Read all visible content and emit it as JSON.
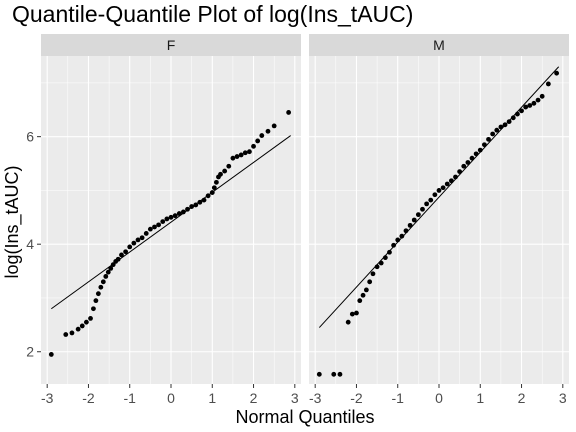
{
  "chart_data": {
    "type": "scatter",
    "title": "Quantile-Quantile Plot of log(Ins_tAUC)",
    "xlabel": "Normal Quantiles",
    "ylabel": "log(Ins_tAUC)",
    "xlim": [
      -3.15,
      3.15
    ],
    "ylim": [
      1.4,
      7.5
    ],
    "x_ticks": [
      -3,
      -2,
      -1,
      0,
      1,
      2,
      3
    ],
    "x_tick_labels": [
      "-3",
      "-2",
      "-1",
      "0",
      "1",
      "2",
      "3"
    ],
    "y_ticks": [
      2,
      4,
      6
    ],
    "y_tick_labels": [
      "2",
      "4",
      "6"
    ],
    "grid": true,
    "colors": {
      "panel_background": "#ebebeb",
      "strip_background": "#d9d9d9",
      "grid_major": "#ffffff",
      "points": "#000000",
      "reference_line": "#000000"
    },
    "panels": [
      {
        "facet_label": "F",
        "reference_line": {
          "x": [
            -2.9,
            2.9
          ],
          "y": [
            2.8,
            6.02
          ]
        },
        "points": {
          "x": [
            -2.9,
            -2.55,
            -2.4,
            -2.25,
            -2.15,
            -2.05,
            -1.95,
            -1.88,
            -1.82,
            -1.76,
            -1.7,
            -1.64,
            -1.58,
            -1.52,
            -1.46,
            -1.4,
            -1.34,
            -1.28,
            -1.2,
            -1.1,
            -1.0,
            -0.9,
            -0.8,
            -0.7,
            -0.6,
            -0.5,
            -0.4,
            -0.3,
            -0.2,
            -0.1,
            0.0,
            0.1,
            0.2,
            0.3,
            0.4,
            0.5,
            0.6,
            0.7,
            0.8,
            0.9,
            1.0,
            1.05,
            1.1,
            1.15,
            1.2,
            1.3,
            1.4,
            1.5,
            1.6,
            1.7,
            1.8,
            1.9,
            2.0,
            2.1,
            2.2,
            2.35,
            2.5,
            2.85
          ],
          "y": [
            1.95,
            2.32,
            2.35,
            2.42,
            2.48,
            2.55,
            2.62,
            2.8,
            2.95,
            3.08,
            3.2,
            3.3,
            3.4,
            3.48,
            3.55,
            3.62,
            3.68,
            3.72,
            3.8,
            3.86,
            3.95,
            4.02,
            4.08,
            4.12,
            4.2,
            4.28,
            4.32,
            4.36,
            4.42,
            4.47,
            4.5,
            4.53,
            4.57,
            4.6,
            4.65,
            4.7,
            4.73,
            4.78,
            4.82,
            4.9,
            4.96,
            5.05,
            5.15,
            5.25,
            5.3,
            5.36,
            5.45,
            5.6,
            5.63,
            5.66,
            5.7,
            5.72,
            5.82,
            5.92,
            6.02,
            6.1,
            6.2,
            6.45
          ]
        }
      },
      {
        "facet_label": "M",
        "reference_line": {
          "x": [
            -2.9,
            2.9
          ],
          "y": [
            2.45,
            7.3
          ]
        },
        "points": {
          "x": [
            -2.9,
            -2.55,
            -2.4,
            -2.2,
            -2.1,
            -2.0,
            -1.92,
            -1.84,
            -1.76,
            -1.68,
            -1.6,
            -1.5,
            -1.4,
            -1.3,
            -1.2,
            -1.1,
            -1.0,
            -0.9,
            -0.8,
            -0.7,
            -0.6,
            -0.5,
            -0.4,
            -0.3,
            -0.2,
            -0.1,
            0.0,
            0.1,
            0.2,
            0.3,
            0.4,
            0.5,
            0.6,
            0.7,
            0.8,
            0.9,
            1.0,
            1.1,
            1.2,
            1.3,
            1.4,
            1.5,
            1.6,
            1.7,
            1.8,
            1.9,
            2.0,
            2.1,
            2.2,
            2.3,
            2.4,
            2.5,
            2.65,
            2.85
          ],
          "y": [
            1.58,
            1.58,
            1.58,
            2.55,
            2.7,
            2.72,
            2.95,
            3.05,
            3.15,
            3.3,
            3.45,
            3.58,
            3.65,
            3.75,
            3.85,
            3.98,
            4.08,
            4.15,
            4.25,
            4.35,
            4.45,
            4.55,
            4.65,
            4.75,
            4.82,
            4.92,
            5.0,
            5.05,
            5.12,
            5.18,
            5.25,
            5.35,
            5.45,
            5.52,
            5.6,
            5.68,
            5.75,
            5.85,
            5.95,
            6.05,
            6.12,
            6.18,
            6.22,
            6.28,
            6.35,
            6.42,
            6.48,
            6.55,
            6.58,
            6.62,
            6.68,
            6.75,
            6.98,
            7.18
          ]
        }
      }
    ]
  }
}
